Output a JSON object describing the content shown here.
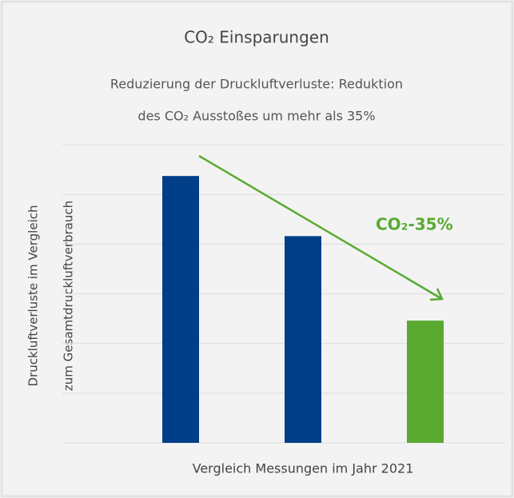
{
  "chart_data": {
    "type": "bar",
    "title": "CO₂ Einsparungen",
    "subtitle": [
      "Reduzierung der Druckluftverluste: Reduktion",
      "des CO₂ Ausstoßes um mehr als 35%"
    ],
    "y_label": [
      "Druckluftverluste im Vergleich",
      "zum Gesamtdruckluftverbrauch"
    ],
    "x_label": "Vergleich Messungen im Jahr 2021",
    "annotation": "CO₂-35%",
    "categories": [
      null,
      null,
      null
    ],
    "values": [
      5.37,
      4.16,
      2.46
    ],
    "colors": [
      "#003f87",
      "#003f87",
      "#5aaa32"
    ],
    "ylim": [
      0,
      6
    ],
    "yticks": [
      0,
      1,
      2,
      3,
      4,
      5,
      6
    ],
    "grid": true
  }
}
